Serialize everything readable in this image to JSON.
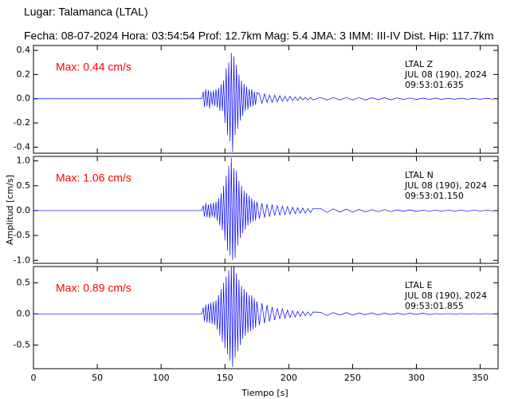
{
  "header": {
    "title": "Lugar: Talamanca (LTAL)",
    "subtitle": "Fecha: 08-07-2024 Hora: 03:54:54 Prof: 12.7km Mag: 5.4    JMA:  3 IMM: III-IV Dist. Hip: 117.7km"
  },
  "chart_data": [
    {
      "type": "line",
      "max_label": "Max: 0.44 cm/s",
      "station_info": [
        "LTAL   Z",
        "JUL 08 (190), 2024",
        "09:53:01.635"
      ],
      "xlim": [
        0,
        364
      ],
      "xticks": [
        0,
        50,
        100,
        150,
        200,
        250,
        300,
        350
      ],
      "ylim": [
        -0.45,
        0.44
      ],
      "yticks": [
        -0.4,
        -0.2,
        {
          "value": 0,
          "label": "0.0"
        },
        0.2,
        0.4
      ],
      "color": "#0000ff",
      "x": [
        0,
        132,
        133,
        134,
        135,
        136,
        137,
        138,
        139,
        140,
        141,
        142,
        143,
        144,
        145,
        146,
        147,
        148,
        149,
        150,
        151,
        152,
        153,
        154,
        155,
        156,
        157,
        158,
        159,
        160,
        161,
        162,
        163,
        164,
        165,
        166,
        167,
        168,
        169,
        170,
        171,
        172,
        173,
        174,
        175,
        177,
        179,
        181,
        183,
        185,
        187,
        189,
        191,
        193,
        195,
        197,
        199,
        201,
        203,
        205,
        207,
        209,
        211,
        213,
        215,
        217,
        219,
        225,
        230,
        235,
        240,
        245,
        250,
        255,
        260,
        265,
        270,
        275,
        280,
        285,
        290,
        295,
        300,
        305,
        310,
        315,
        320,
        325,
        330,
        335,
        340,
        345,
        350,
        355,
        360
      ],
      "values": [
        0,
        0,
        0.06,
        -0.07,
        0.08,
        -0.06,
        0.07,
        -0.08,
        0.06,
        -0.05,
        0.07,
        -0.06,
        0.08,
        -0.07,
        0.09,
        -0.1,
        0.12,
        -0.1,
        0.15,
        -0.2,
        0.25,
        -0.3,
        0.3,
        -0.35,
        0.38,
        -0.44,
        0.35,
        -0.3,
        0.28,
        -0.25,
        0.2,
        -0.18,
        0.15,
        -0.14,
        0.12,
        -0.1,
        0.1,
        -0.09,
        0.08,
        -0.07,
        0.08,
        -0.06,
        0.06,
        -0.05,
        0.05,
        0.04,
        -0.04,
        0.04,
        -0.03,
        0.03,
        -0.03,
        0.03,
        -0.025,
        0.025,
        -0.02,
        0.02,
        -0.02,
        0.02,
        -0.015,
        0.015,
        -0.015,
        0.015,
        -0.01,
        0.01,
        -0.01,
        0.01,
        -0.01,
        0.01,
        -0.01,
        0.01,
        -0.01,
        0.01,
        -0.01,
        0.01,
        -0.01,
        0.008,
        -0.008,
        0.008,
        -0.008,
        0.006,
        -0.006,
        0.006,
        -0.006,
        0.005,
        -0.005,
        0.005,
        -0.005,
        0.004,
        -0.004,
        0.004,
        -0.004,
        0.004,
        -0.004,
        0.004,
        -0.004
      ]
    },
    {
      "type": "line",
      "max_label": "Max: 1.06 cm/s",
      "station_info": [
        "LTAL   N",
        "JUL 08 (190), 2024",
        "09:53:01.150"
      ],
      "ylabel": "Amplitud [cm/s]",
      "xlim": [
        0,
        364
      ],
      "xticks": [
        0,
        50,
        100,
        150,
        200,
        250,
        300,
        350
      ],
      "ylim": [
        -1.06,
        1.09
      ],
      "yticks": [
        {
          "value": -1,
          "label": "-1.0"
        },
        -0.5,
        {
          "value": 0,
          "label": "0.0"
        },
        0.5,
        {
          "value": 1,
          "label": "1.0"
        }
      ],
      "color": "#0000ff",
      "x": [
        0,
        132,
        133,
        134,
        135,
        136,
        137,
        138,
        139,
        140,
        141,
        142,
        143,
        144,
        145,
        146,
        147,
        148,
        149,
        150,
        151,
        152,
        153,
        154,
        155,
        156,
        157,
        158,
        159,
        160,
        161,
        162,
        163,
        164,
        165,
        166,
        167,
        168,
        169,
        170,
        171,
        172,
        173,
        174,
        175,
        177,
        179,
        181,
        183,
        185,
        187,
        189,
        191,
        193,
        195,
        197,
        199,
        201,
        203,
        205,
        207,
        209,
        211,
        213,
        215,
        217,
        219,
        225,
        230,
        235,
        240,
        245,
        250,
        255,
        260,
        265,
        270,
        275,
        280,
        285,
        290,
        295,
        300,
        305,
        310,
        315,
        320,
        325,
        330,
        335,
        340,
        345,
        350,
        355,
        360
      ],
      "values": [
        0,
        0,
        0.1,
        -0.12,
        0.15,
        -0.13,
        0.12,
        -0.15,
        0.14,
        -0.12,
        0.16,
        -0.14,
        0.18,
        -0.2,
        0.25,
        -0.3,
        0.35,
        -0.4,
        0.5,
        -0.6,
        0.7,
        -0.8,
        0.9,
        -0.9,
        1.06,
        -1.0,
        0.85,
        -0.95,
        0.8,
        -0.7,
        0.6,
        -0.55,
        0.5,
        -0.45,
        0.4,
        -0.38,
        0.35,
        -0.3,
        0.3,
        -0.25,
        0.25,
        -0.22,
        0.2,
        -0.2,
        0.18,
        -0.16,
        0.15,
        -0.14,
        0.13,
        -0.12,
        0.12,
        -0.1,
        0.1,
        -0.09,
        0.09,
        -0.08,
        0.08,
        -0.07,
        0.07,
        -0.06,
        0.06,
        -0.05,
        0.05,
        -0.05,
        0.04,
        -0.04,
        0.04,
        0.04,
        -0.035,
        0.035,
        -0.03,
        0.03,
        -0.03,
        0.025,
        -0.025,
        0.02,
        -0.02,
        0.02,
        -0.02,
        0.015,
        -0.015,
        0.015,
        -0.015,
        0.01,
        -0.01,
        0.01,
        -0.01,
        0.01,
        -0.01,
        0.01,
        -0.01,
        0.01,
        -0.01,
        0.01,
        -0.01
      ]
    },
    {
      "type": "line",
      "max_label": "Max: 0.89 cm/s",
      "station_info": [
        "LTAL   E",
        "JUL 08 (190), 2024",
        "09:53:01.855"
      ],
      "xlabel": "Tiempo [s]",
      "xlim": [
        0,
        364
      ],
      "xticks": [
        0,
        50,
        100,
        150,
        200,
        250,
        300,
        350
      ],
      "ylim": [
        -0.88,
        0.76
      ],
      "yticks": [
        -0.5,
        {
          "value": 0,
          "label": "0.0"
        },
        0.5
      ],
      "color": "#0000ff",
      "x": [
        0,
        132,
        133,
        134,
        135,
        136,
        137,
        138,
        139,
        140,
        141,
        142,
        143,
        144,
        145,
        146,
        147,
        148,
        149,
        150,
        151,
        152,
        153,
        154,
        155,
        156,
        157,
        158,
        159,
        160,
        161,
        162,
        163,
        164,
        165,
        166,
        167,
        168,
        169,
        170,
        171,
        172,
        173,
        174,
        175,
        177,
        179,
        181,
        183,
        185,
        187,
        189,
        191,
        193,
        195,
        197,
        199,
        201,
        203,
        205,
        207,
        209,
        211,
        213,
        215,
        217,
        219,
        225,
        230,
        235,
        240,
        245,
        250,
        255,
        260,
        265,
        270,
        275,
        280,
        285,
        290,
        295,
        300,
        305,
        310,
        315,
        320,
        325,
        330,
        335,
        340,
        345,
        350,
        355,
        360
      ],
      "values": [
        0,
        0,
        0.1,
        -0.12,
        0.15,
        -0.14,
        0.16,
        -0.15,
        0.18,
        -0.16,
        0.2,
        -0.18,
        0.22,
        -0.25,
        0.3,
        -0.35,
        0.4,
        -0.45,
        0.5,
        -0.55,
        0.6,
        -0.65,
        0.7,
        -0.75,
        0.8,
        -0.85,
        0.89,
        -0.7,
        0.65,
        -0.6,
        0.55,
        -0.5,
        0.45,
        -0.4,
        0.4,
        -0.35,
        0.35,
        -0.3,
        0.3,
        -0.28,
        0.3,
        -0.25,
        0.25,
        -0.22,
        0.2,
        -0.18,
        0.17,
        -0.15,
        0.14,
        -0.12,
        0.11,
        -0.1,
        0.09,
        -0.08,
        0.08,
        -0.07,
        0.06,
        -0.06,
        0.05,
        -0.05,
        0.04,
        -0.04,
        0.04,
        -0.03,
        0.03,
        -0.03,
        0.03,
        0.025,
        -0.025,
        0.02,
        -0.02,
        0.02,
        -0.02,
        0.015,
        -0.015,
        0.015,
        -0.015,
        0.01,
        -0.01,
        0.01,
        -0.01,
        0.01,
        -0.01,
        0.01,
        -0.01,
        0.005,
        -0.005,
        0.005,
        -0.005,
        0.005,
        -0.005,
        0.005,
        -0.005,
        0.005,
        -0.005
      ]
    }
  ]
}
